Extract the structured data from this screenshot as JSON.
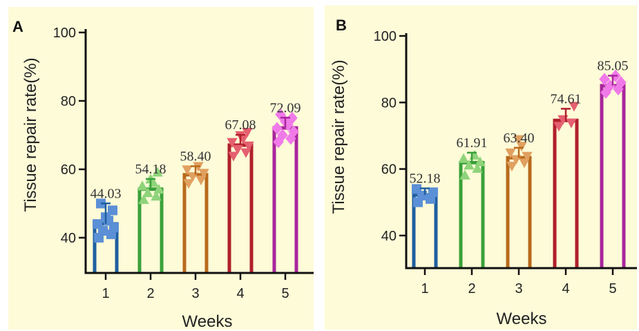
{
  "chart_data": [
    {
      "type": "bar",
      "panel_label": "A",
      "categories": [
        "1",
        "2",
        "3",
        "4",
        "5"
      ],
      "values": [
        44.03,
        54.18,
        58.4,
        67.08,
        72.09
      ],
      "value_labels": [
        "44.03",
        "54.18",
        "58.40",
        "67.08",
        "72.09"
      ],
      "xlabel": "Weeks",
      "ylabel": "Tissue repair rate(%)",
      "ylim": [
        40,
        100
      ],
      "yticks": [
        "40",
        "60",
        "80",
        "100"
      ],
      "colors": [
        "#1f5fa0",
        "#3aa13a",
        "#b86a1c",
        "#b0202a",
        "#a8269c"
      ],
      "marker_colors": [
        "#5b8fd6",
        "#8fd37a",
        "#e0a060",
        "#e56070",
        "#f07ae8"
      ],
      "marker_shapes": [
        "square",
        "triangle-up",
        "triangle-down",
        "triangle-down",
        "diamond"
      ],
      "points": [
        [
          40,
          41,
          42,
          43,
          44,
          45,
          46,
          48,
          50
        ],
        [
          51,
          52,
          53,
          54,
          55,
          56,
          57,
          59
        ],
        [
          56,
          57,
          58,
          59,
          60,
          61
        ],
        [
          64,
          65,
          66,
          67,
          68,
          69,
          70,
          71
        ],
        [
          68,
          69,
          70,
          71,
          72,
          73,
          74,
          75,
          76
        ]
      ],
      "error": [
        6,
        3,
        2.5,
        3,
        3
      ],
      "grid": false
    },
    {
      "type": "bar",
      "panel_label": "B",
      "categories": [
        "1",
        "2",
        "3",
        "4",
        "5"
      ],
      "values": [
        52.18,
        61.91,
        63.4,
        74.61,
        85.05
      ],
      "value_labels": [
        "52.18",
        "61.91",
        "63.40",
        "74.61",
        "85.05"
      ],
      "xlabel": "Weeks",
      "ylabel": "Tissue repair rate(%)",
      "ylim": [
        30,
        100
      ],
      "yticks": [
        "40",
        "60",
        "80",
        "100"
      ],
      "colors": [
        "#1f5fa0",
        "#3aa13a",
        "#b86a1c",
        "#b0202a",
        "#a8269c"
      ],
      "marker_colors": [
        "#5b8fd6",
        "#8fd37a",
        "#e0a060",
        "#e56070",
        "#f07ae8"
      ],
      "marker_shapes": [
        "square",
        "triangle-up",
        "triangle-down",
        "triangle-down",
        "diamond"
      ],
      "points": [
        [
          50,
          51,
          52,
          53,
          54
        ],
        [
          58,
          60,
          61,
          62,
          63,
          64
        ],
        [
          61,
          62,
          63,
          64,
          65,
          67,
          69
        ],
        [
          73,
          74,
          75,
          79
        ],
        [
          83,
          84,
          85,
          86,
          87,
          88
        ]
      ],
      "error": [
        2,
        3,
        3,
        3.5,
        3
      ],
      "grid": false
    }
  ]
}
